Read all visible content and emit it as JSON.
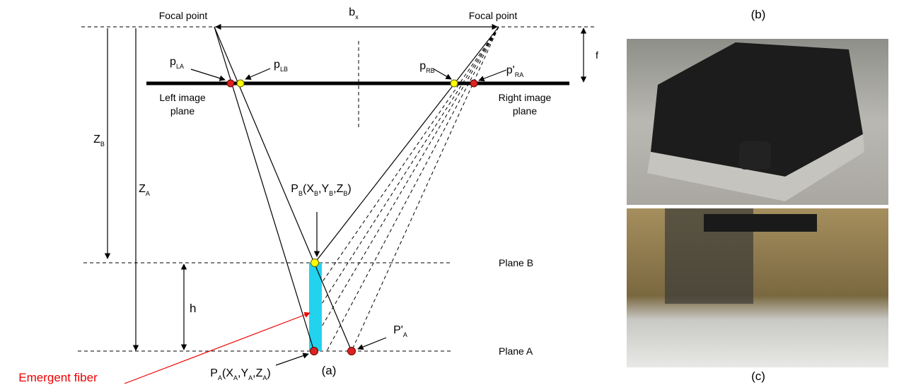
{
  "labels": {
    "focal_left": "Focal point",
    "focal_right": "Focal point",
    "b_x": [
      {
        "text": "b"
      },
      {
        "sub": "x"
      }
    ],
    "f": "f",
    "p_LA": [
      {
        "text": "p"
      },
      {
        "sub": "LA"
      }
    ],
    "p_LB": [
      {
        "text": "p"
      },
      {
        "sub": "LB"
      }
    ],
    "p_RB": [
      {
        "text": "p"
      },
      {
        "sub": "RB"
      }
    ],
    "p_RA": [
      {
        "text": "p'"
      },
      {
        "sub": "RA"
      }
    ],
    "left_plane": [
      "Left image",
      "plane"
    ],
    "right_plane": [
      "Right image",
      "plane"
    ],
    "Z_B": [
      {
        "text": "Z"
      },
      {
        "sub": "B"
      }
    ],
    "Z_A": [
      {
        "text": "Z"
      },
      {
        "sub": "A"
      }
    ],
    "P_B": [
      {
        "text": "P"
      },
      {
        "sub": "B"
      },
      {
        "text": "(X"
      },
      {
        "sub": "B"
      },
      {
        "text": ",Y"
      },
      {
        "sub": "B"
      },
      {
        "text": ",Z"
      },
      {
        "sub": "B"
      },
      {
        "text": ")"
      }
    ],
    "plane_B": "Plane B",
    "plane_A": "Plane A",
    "h": "h",
    "P_prime_A": [
      {
        "text": "P'"
      },
      {
        "sub": "A"
      }
    ],
    "P_A": [
      {
        "text": "P"
      },
      {
        "sub": "A"
      },
      {
        "text": "(X"
      },
      {
        "sub": "A"
      },
      {
        "text": ",Y"
      },
      {
        "sub": "A"
      },
      {
        "text": ",Z"
      },
      {
        "sub": "A"
      },
      {
        "text": ")"
      }
    ],
    "emergent_fiber": "Emergent fiber",
    "panel_a": "(a)",
    "panel_b": "(b)",
    "panel_c": "(c)"
  }
}
